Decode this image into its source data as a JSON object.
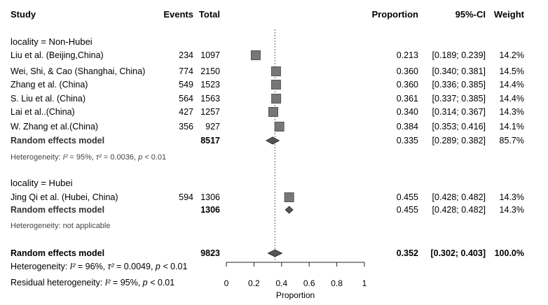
{
  "chart_data": {
    "type": "forest",
    "xlabel": "Proportion",
    "xlim": [
      0,
      1
    ],
    "xticks": [
      "0",
      "0.2",
      "0.4",
      "0.6",
      "0.8",
      "1"
    ],
    "reference_line": 0.352,
    "headers": {
      "study": "Study",
      "events": "Events",
      "total": "Total",
      "proportion": "Proportion",
      "ci": "95%-CI",
      "weight": "Weight"
    },
    "groups": [
      {
        "label": "locality = Non-Hubei",
        "studies": [
          {
            "name": "Liu et al. (Beijing,China)",
            "events": "234",
            "total": "1097",
            "prop": 0.213,
            "lo": 0.189,
            "hi": 0.239,
            "prop_text": "0.213",
            "ci_text": "[0.189; 0.239]",
            "weight_text": "14.2%"
          },
          {
            "name": "Wei, Shi, & Cao (Shanghai, China)",
            "events": "774",
            "total": "2150",
            "prop": 0.36,
            "lo": 0.34,
            "hi": 0.381,
            "prop_text": "0.360",
            "ci_text": "[0.340; 0.381]",
            "weight_text": "14.5%"
          },
          {
            "name": "Zhang et al. (China)",
            "events": "549",
            "total": "1523",
            "prop": 0.36,
            "lo": 0.336,
            "hi": 0.385,
            "prop_text": "0.360",
            "ci_text": "[0.336; 0.385]",
            "weight_text": "14.4%"
          },
          {
            "name": "S. Liu et al. (China)",
            "events": "564",
            "total": "1563",
            "prop": 0.361,
            "lo": 0.337,
            "hi": 0.385,
            "prop_text": "0.361",
            "ci_text": "[0.337; 0.385]",
            "weight_text": "14.4%"
          },
          {
            "name": "Lai et al..(China)",
            "events": "427",
            "total": "1257",
            "prop": 0.34,
            "lo": 0.314,
            "hi": 0.367,
            "prop_text": "0.340",
            "ci_text": "[0.314; 0.367]",
            "weight_text": "14.3%"
          },
          {
            "name": "W. Zhang et al.(China)",
            "events": "356",
            "total": "927",
            "prop": 0.384,
            "lo": 0.353,
            "hi": 0.416,
            "prop_text": "0.384",
            "ci_text": "[0.353; 0.416]",
            "weight_text": "14.1%"
          }
        ],
        "summary": {
          "label": "Random effects model",
          "total": "8517",
          "prop": 0.335,
          "lo": 0.289,
          "hi": 0.382,
          "prop_text": "0.335",
          "ci_text": "[0.289; 0.382]",
          "weight_text": "85.7%"
        },
        "heterogeneity": "Heterogeneity: I² = 95%, τ² = 0.0036, p < 0.01"
      },
      {
        "label": "locality = Hubei",
        "studies": [
          {
            "name": "Jing Qi et al. (Hubei, China)",
            "events": "594",
            "total": "1306",
            "prop": 0.455,
            "lo": 0.428,
            "hi": 0.482,
            "prop_text": "0.455",
            "ci_text": "[0.428; 0.482]",
            "weight_text": "14.3%"
          }
        ],
        "summary": {
          "label": "Random effects model",
          "total": "1306",
          "prop": 0.455,
          "lo": 0.428,
          "hi": 0.482,
          "prop_text": "0.455",
          "ci_text": "[0.428; 0.482]",
          "weight_text": "14.3%"
        },
        "heterogeneity": "Heterogeneity: not applicable"
      }
    ],
    "overall": {
      "label": "Random effects model",
      "total": "9823",
      "prop": 0.352,
      "lo": 0.302,
      "hi": 0.403,
      "prop_text": "0.352",
      "ci_text": "[0.302; 0.403]",
      "weight_text": "100.0%"
    },
    "overall_heterogeneity": "Heterogeneity: I² = 96%, τ² = 0.0049, p < 0.01",
    "residual_heterogeneity": "Residual heterogeneity: I² = 95%, p < 0.01"
  }
}
